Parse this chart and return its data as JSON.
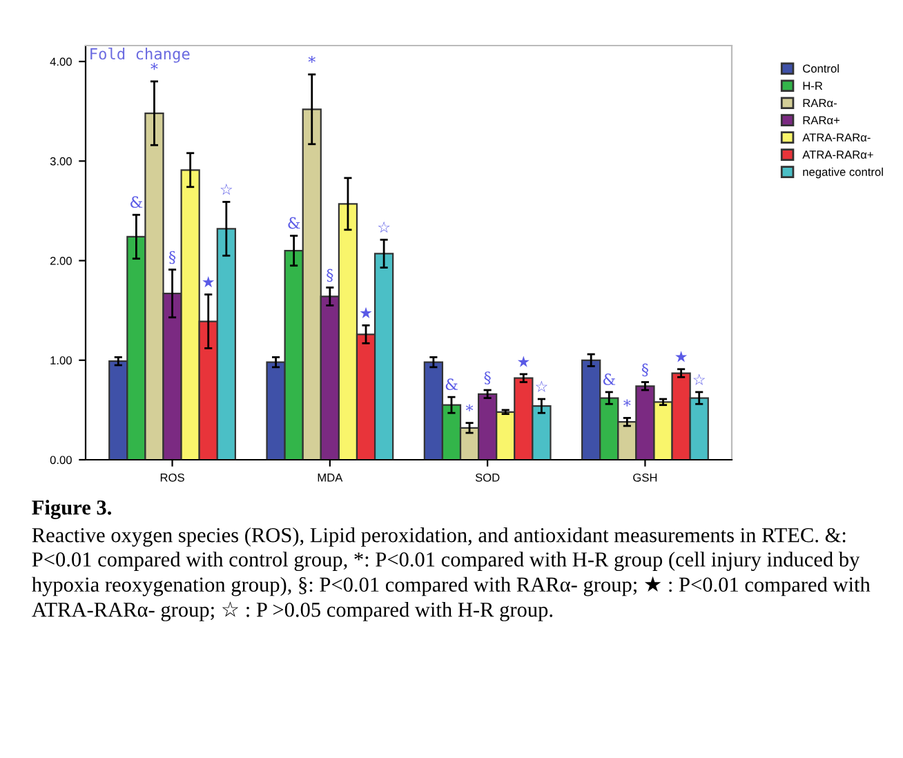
{
  "chart_data": {
    "type": "bar",
    "title": "Figure 3.",
    "ylabel": "Fold change",
    "categories": [
      "ROS",
      "MDA",
      "SOD",
      "GSH"
    ],
    "series": [
      {
        "name": "Control",
        "color": "#3f51a8",
        "values": [
          0.99,
          0.98,
          0.98,
          1.0
        ],
        "errors": [
          0.04,
          0.05,
          0.05,
          0.06
        ]
      },
      {
        "name": "H-R",
        "color": "#33b54a",
        "values": [
          2.24,
          2.1,
          0.55,
          0.62
        ],
        "errors": [
          0.22,
          0.15,
          0.08,
          0.06
        ]
      },
      {
        "name": "RARα-",
        "color": "#d4cf98",
        "values": [
          3.48,
          3.52,
          0.32,
          0.38
        ],
        "errors": [
          0.32,
          0.35,
          0.05,
          0.04
        ]
      },
      {
        "name": "RARα+",
        "color": "#7b2a82",
        "values": [
          1.67,
          1.64,
          0.66,
          0.74
        ],
        "errors": [
          0.24,
          0.09,
          0.04,
          0.04
        ]
      },
      {
        "name": "ATRA-RARα-",
        "color": "#f9f56b",
        "values": [
          2.91,
          2.57,
          0.48,
          0.58
        ],
        "errors": [
          0.17,
          0.26,
          0.02,
          0.03
        ]
      },
      {
        "name": "ATRA-RARα+",
        "color": "#e8343a",
        "values": [
          1.39,
          1.26,
          0.82,
          0.87
        ],
        "errors": [
          0.27,
          0.09,
          0.04,
          0.04
        ]
      },
      {
        "name": "negative control",
        "color": "#4bbfc6",
        "values": [
          2.32,
          2.07,
          0.54,
          0.62
        ],
        "errors": [
          0.27,
          0.14,
          0.07,
          0.06
        ]
      }
    ],
    "ylim": [
      0,
      4.16
    ],
    "yticks": [
      {
        "value": 0,
        "label": "0.00"
      },
      {
        "value": 1,
        "label": "1.00"
      },
      {
        "value": 2,
        "label": "2.00"
      },
      {
        "value": 3,
        "label": "3.00"
      },
      {
        "value": 4,
        "label": "4.00"
      }
    ],
    "grid": false,
    "legend": "top right",
    "annotations": [
      "&",
      "*",
      "§",
      "★",
      "☆",
      "&",
      "*",
      "§",
      "★",
      "☆",
      "&",
      "*",
      "§",
      "★",
      "☆",
      "&",
      "*",
      "§",
      "★",
      "☆",
      "Reactive oxygen species (ROS), Lipid peroxidation, and antioxidant measurements in RTEC. &: P<0.01 compared with control group, *: P<0.01 compared with H-R group (cell injury induced by hypoxia reoxygenation group), §: P<0.01 compared with RARα- group; ★ : P<0.01 compared with ATRA-RARα- group; ☆ : P >0.05 compared with H-R group."
    ]
  }
}
